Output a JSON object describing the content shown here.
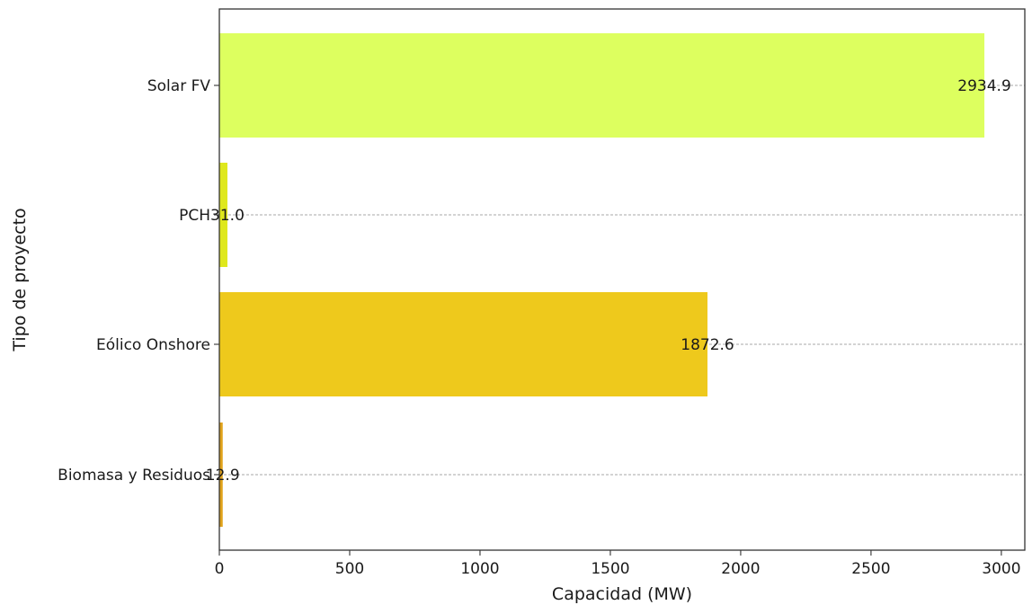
{
  "chart_data": {
    "type": "bar",
    "orientation": "horizontal",
    "categories": [
      "Solar FV",
      "PCH",
      "Eólico Onshore",
      "Biomasa y Residuos"
    ],
    "values": [
      2934.9,
      31.0,
      1872.6,
      12.9
    ],
    "value_labels": [
      "2934.9",
      "31.0",
      "1872.6",
      "12.9"
    ],
    "colors": [
      "#ddff5f",
      "#dfe81d",
      "#eec91c",
      "#e0a21a"
    ],
    "xlabel": "Capacidad (MW)",
    "ylabel": "Tipo de proyecto",
    "xlim": [
      0,
      3090
    ],
    "xticks": [
      0,
      500,
      1000,
      1500,
      2000,
      2500,
      3000
    ],
    "xtick_labels": [
      "0",
      "500",
      "1000",
      "1500",
      "2000",
      "2500",
      "3000"
    ],
    "grid": "y-dashed"
  }
}
